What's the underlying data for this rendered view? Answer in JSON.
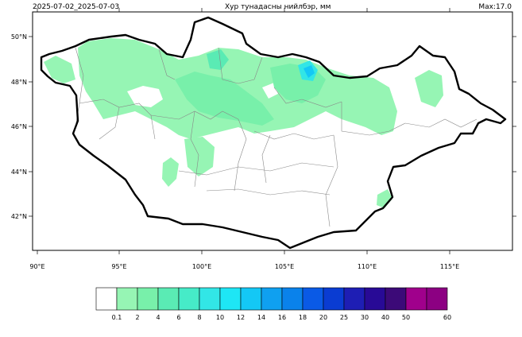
{
  "header": {
    "date_range": "2025-07-02_2025-07-03",
    "title": "Хур тунадасны нийлбэр, мм",
    "max_label": "Max:17.0"
  },
  "map": {
    "lon_ticks": [
      "90°E",
      "95°E",
      "100°E",
      "105°E",
      "110°E",
      "115°E"
    ],
    "lat_ticks": [
      "50°N",
      "48°N",
      "46°N",
      "44°N",
      "42°N"
    ]
  },
  "legend": {
    "unit": "mm",
    "bins": [
      {
        "color": "#ffffff",
        "label": "0.1"
      },
      {
        "color": "#96f5b4",
        "label": "2"
      },
      {
        "color": "#78f0aa",
        "label": "4"
      },
      {
        "color": "#5aebb4",
        "label": "6"
      },
      {
        "color": "#46ebc8",
        "label": "8"
      },
      {
        "color": "#32e6e6",
        "label": "10"
      },
      {
        "color": "#1ee6f5",
        "label": "12"
      },
      {
        "color": "#14c8f5",
        "label": "14"
      },
      {
        "color": "#0fa0f0",
        "label": "16"
      },
      {
        "color": "#0a82eb",
        "label": "18"
      },
      {
        "color": "#0a5ae6",
        "label": "20"
      },
      {
        "color": "#0a3cd2",
        "label": "25"
      },
      {
        "color": "#1e1eb4",
        "label": "30"
      },
      {
        "color": "#280a96",
        "label": "40"
      },
      {
        "color": "#3c0a78",
        "label": "50"
      },
      {
        "color": "#a0008c",
        "label": ""
      },
      {
        "color": "#8c0082",
        "label": "60"
      }
    ]
  }
}
